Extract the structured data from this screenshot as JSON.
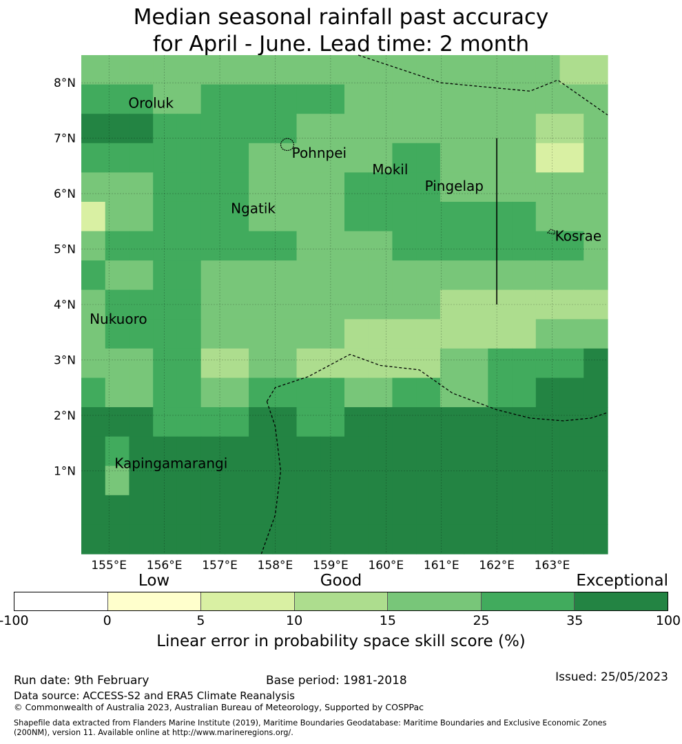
{
  "title": {
    "line1": "Median seasonal rainfall past accuracy",
    "line2": "for April - June. Lead time: 2 month"
  },
  "map": {
    "lon_range": [
      154.5,
      164.0
    ],
    "lat_range": [
      -0.5,
      8.5
    ],
    "cell_size": 0.5556,
    "lat_ticks": [
      {
        "value": 8,
        "label": "8°N"
      },
      {
        "value": 7,
        "label": "7°N"
      },
      {
        "value": 6,
        "label": "6°N"
      },
      {
        "value": 5,
        "label": "5°N"
      },
      {
        "value": 4,
        "label": "4°N"
      },
      {
        "value": 3,
        "label": "3°N"
      },
      {
        "value": 2,
        "label": "2°N"
      },
      {
        "value": 1,
        "label": "1°N"
      }
    ],
    "lon_ticks": [
      {
        "value": 155,
        "label": "155°E"
      },
      {
        "value": 156,
        "label": "156°E"
      },
      {
        "value": 157,
        "label": "157°E"
      },
      {
        "value": 158,
        "label": "158°E"
      },
      {
        "value": 159,
        "label": "159°E"
      },
      {
        "value": 160,
        "label": "160°E"
      },
      {
        "value": 161,
        "label": "161°E"
      },
      {
        "value": 162,
        "label": "162°E"
      },
      {
        "value": 163,
        "label": "163°E"
      }
    ],
    "category_colors": {
      "1": "#ffffcc",
      "2": "#d9f0a3",
      "3": "#addd8e",
      "4": "#78c679",
      "5": "#41ab5d",
      "6": "#238443"
    },
    "skill_grid": [
      [
        4,
        4,
        4,
        4,
        4,
        4,
        4,
        4,
        4,
        4,
        4,
        4,
        4,
        4,
        4,
        4,
        4,
        4,
        4,
        4,
        3,
        3
      ],
      [
        5,
        5,
        5,
        4,
        4,
        5,
        5,
        5,
        5,
        5,
        5,
        4,
        4,
        4,
        4,
        4,
        4,
        4,
        4,
        4,
        4,
        4
      ],
      [
        6,
        6,
        6,
        5,
        5,
        5,
        5,
        5,
        5,
        4,
        4,
        4,
        4,
        4,
        4,
        4,
        4,
        4,
        4,
        3,
        3,
        4
      ],
      [
        5,
        5,
        5,
        5,
        5,
        5,
        5,
        4,
        4,
        4,
        4,
        4,
        4,
        5,
        5,
        4,
        4,
        4,
        4,
        2,
        2,
        4
      ],
      [
        4,
        4,
        4,
        5,
        5,
        5,
        5,
        4,
        4,
        4,
        4,
        5,
        5,
        5,
        5,
        4,
        4,
        4,
        4,
        4,
        4,
        4
      ],
      [
        2,
        4,
        4,
        5,
        5,
        5,
        5,
        4,
        4,
        4,
        4,
        5,
        5,
        5,
        5,
        5,
        5,
        5,
        5,
        4,
        4,
        4
      ],
      [
        4,
        5,
        5,
        5,
        5,
        5,
        5,
        5,
        5,
        4,
        4,
        4,
        4,
        5,
        5,
        5,
        5,
        5,
        5,
        5,
        5,
        4
      ],
      [
        5,
        4,
        4,
        5,
        5,
        4,
        4,
        4,
        4,
        4,
        4,
        4,
        4,
        4,
        4,
        4,
        4,
        4,
        4,
        4,
        4,
        4
      ],
      [
        4,
        5,
        5,
        5,
        5,
        4,
        4,
        4,
        4,
        4,
        4,
        4,
        4,
        4,
        4,
        3,
        3,
        3,
        3,
        3,
        3,
        3
      ],
      [
        4,
        5,
        5,
        5,
        5,
        4,
        4,
        4,
        4,
        4,
        4,
        3,
        3,
        3,
        3,
        3,
        3,
        3,
        3,
        4,
        4,
        4
      ],
      [
        4,
        4,
        4,
        5,
        5,
        3,
        3,
        4,
        4,
        3,
        3,
        3,
        3,
        3,
        3,
        4,
        4,
        5,
        5,
        5,
        5,
        6
      ],
      [
        5,
        4,
        4,
        5,
        5,
        4,
        4,
        5,
        5,
        5,
        5,
        4,
        4,
        5,
        5,
        4,
        4,
        5,
        5,
        6,
        6,
        6
      ],
      [
        6,
        6,
        6,
        5,
        5,
        5,
        5,
        6,
        6,
        5,
        5,
        6,
        6,
        6,
        6,
        6,
        6,
        6,
        6,
        6,
        6,
        6
      ],
      [
        6,
        5,
        6,
        6,
        6,
        6,
        6,
        6,
        6,
        6,
        6,
        6,
        6,
        6,
        6,
        6,
        6,
        6,
        6,
        6,
        6,
        6
      ],
      [
        6,
        4,
        6,
        6,
        6,
        6,
        6,
        6,
        6,
        6,
        6,
        6,
        6,
        6,
        6,
        6,
        6,
        6,
        6,
        6,
        6,
        6
      ],
      [
        6,
        6,
        6,
        6,
        6,
        6,
        6,
        6,
        6,
        6,
        6,
        6,
        6,
        6,
        6,
        6,
        6,
        6,
        6,
        6,
        6,
        6
      ],
      [
        6,
        6,
        6,
        6,
        6,
        6,
        6,
        6,
        6,
        6,
        6,
        6,
        6,
        6,
        6,
        6,
        6,
        6,
        6,
        6,
        6,
        6
      ]
    ],
    "places": [
      {
        "name": "Oroluk",
        "lon": 155.35,
        "lat": 7.55
      },
      {
        "name": "Pohnpei",
        "lon": 158.3,
        "lat": 6.65
      },
      {
        "name": "Mokil",
        "lon": 159.75,
        "lat": 6.35
      },
      {
        "name": "Pingelap",
        "lon": 160.7,
        "lat": 6.05
      },
      {
        "name": "Ngatik",
        "lon": 157.2,
        "lat": 5.65
      },
      {
        "name": "Kosrae",
        "lon": 163.05,
        "lat": 5.15
      },
      {
        "name": "Nukuoro",
        "lon": 154.65,
        "lat": 3.65
      },
      {
        "name": "Kapingamarangi",
        "lon": 155.1,
        "lat": 1.05
      }
    ],
    "boundaries": [
      [
        [
          159.5,
          8.5
        ],
        [
          161,
          8.0
        ],
        [
          162.6,
          7.85
        ],
        [
          163.1,
          8.05
        ],
        [
          164,
          7.42
        ]
      ],
      [
        [
          157.85,
          2.25
        ],
        [
          158.0,
          2.5
        ],
        [
          158.6,
          2.7
        ],
        [
          159.35,
          3.1
        ],
        [
          159.9,
          2.9
        ],
        [
          160.6,
          2.82
        ],
        [
          161.2,
          2.4
        ],
        [
          162.0,
          2.1
        ],
        [
          162.6,
          1.95
        ],
        [
          163.2,
          1.9
        ],
        [
          163.7,
          1.95
        ],
        [
          164.0,
          2.05
        ]
      ],
      [
        [
          157.85,
          2.25
        ],
        [
          158.0,
          1.8
        ],
        [
          158.1,
          1.0
        ],
        [
          158.0,
          0.2
        ],
        [
          157.75,
          -0.5
        ]
      ]
    ],
    "solid_line": [
      [
        162.0,
        7.0
      ],
      [
        162.0,
        4.0
      ]
    ]
  },
  "legend": {
    "colors": [
      "#ffffff",
      "#ffffcc",
      "#d9f0a3",
      "#addd8e",
      "#78c679",
      "#41ab5d",
      "#238443"
    ],
    "ticks": [
      "-100",
      "0",
      "5",
      "10",
      "15",
      "25",
      "35",
      "100"
    ],
    "categories": [
      {
        "label": "Low",
        "index": 1.5
      },
      {
        "label": "Good",
        "index": 3.5
      },
      {
        "label": "Exceptional",
        "index": 6.5
      }
    ],
    "label": "Linear error in probability space skill score (%)"
  },
  "footer": {
    "run_date": "Run date: 9th February",
    "base_period": "Base period: 1981-2018",
    "issued": "Issued: 25/05/2023",
    "data_source": "Data source: ACCESS-S2 and ERA5 Climate Reanalysis",
    "copyright": "© Commonwealth of Australia 2023, Australian Bureau of Meteorology, Supported by COSPPac",
    "shapefile_line1": "Shapefile data extracted from Flanders Marine Institute (2019), Maritime Boundaries Geodatabase: Maritime Boundaries and Exclusive Economic Zones",
    "shapefile_line2": "(200NM), version 11. Available online at http://www.marineregions.org/."
  }
}
